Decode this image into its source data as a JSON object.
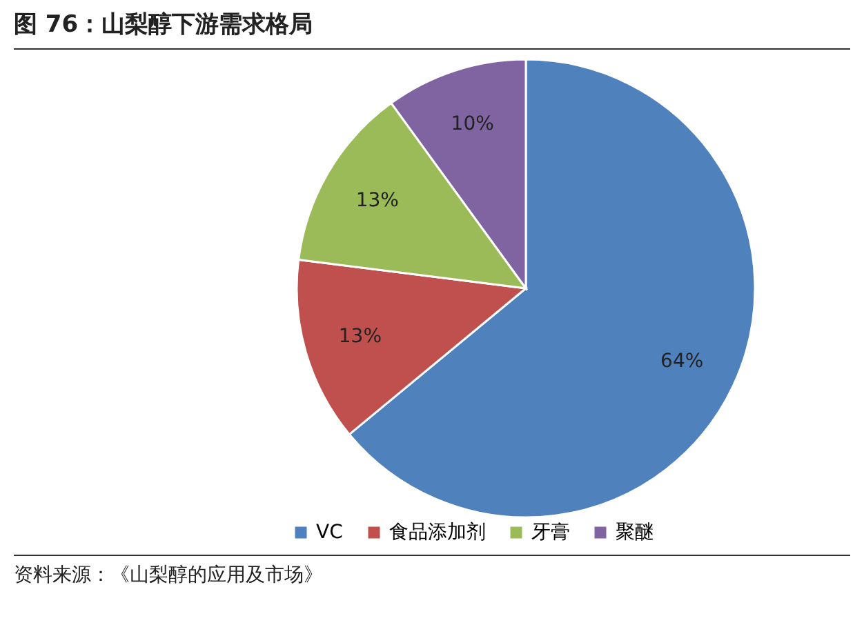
{
  "chart_data": {
    "type": "pie",
    "title": "图 76：山梨醇下游需求格局",
    "categories": [
      "VC",
      "食品添加剂",
      "牙膏",
      "聚醚"
    ],
    "values": [
      64,
      13,
      13,
      10
    ],
    "colors": [
      "#4f81bd",
      "#c0504d",
      "#9bbb59",
      "#8064a2"
    ],
    "value_labels": [
      "64%",
      "13%",
      "13%",
      "10%"
    ],
    "legend": "bottom",
    "annotations": [
      "资料来源：《山梨醇的应用及市场》"
    ]
  }
}
